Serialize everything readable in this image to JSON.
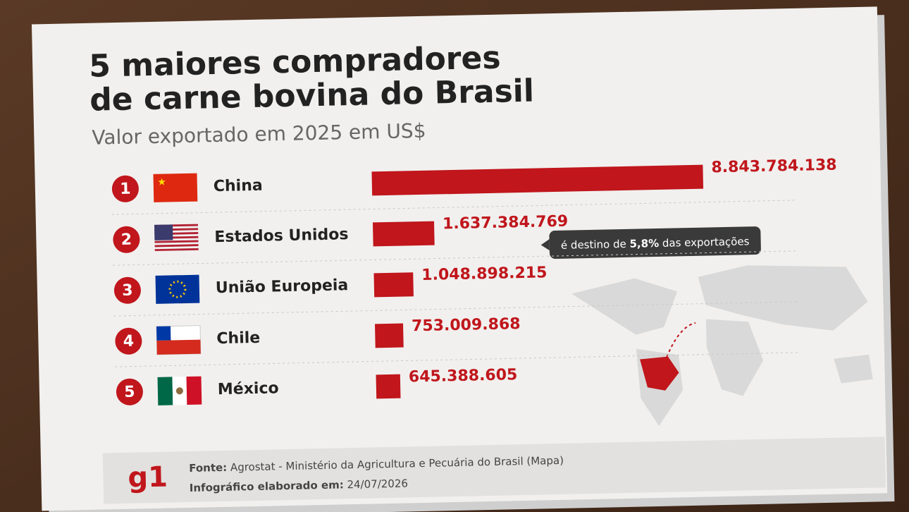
{
  "chart_data": {
    "type": "bar",
    "orientation": "horizontal",
    "title": [
      "5 maiores compradores",
      "de carne bovina do Brasil"
    ],
    "subtitle": "Valor exportado em 2025 em US$",
    "categories": [
      "China",
      "Estados Unidos",
      "União Europeia",
      "Chile",
      "México"
    ],
    "ranks": [
      1,
      2,
      3,
      4,
      5
    ],
    "values": [
      8843784138,
      1637384769,
      1048898215,
      753009868,
      645388605
    ],
    "value_labels": [
      "8.843.784.138",
      "1.637.384.769",
      "1.048.898.215",
      "753.009.868",
      "645.388.605"
    ],
    "color": "#c0161c",
    "annotation": {
      "prefix": "é destino de ",
      "highlight": "5,8%",
      "suffix": " das exportações"
    }
  },
  "footer": {
    "logo": "g1",
    "source": {
      "label": "Fonte:",
      "text": "Agrostat - Ministério da Agricultura e Pecuária do Brasil (Mapa)"
    },
    "date": {
      "label": "Infográfico elaborado em:",
      "text": "24/07/2026"
    }
  }
}
